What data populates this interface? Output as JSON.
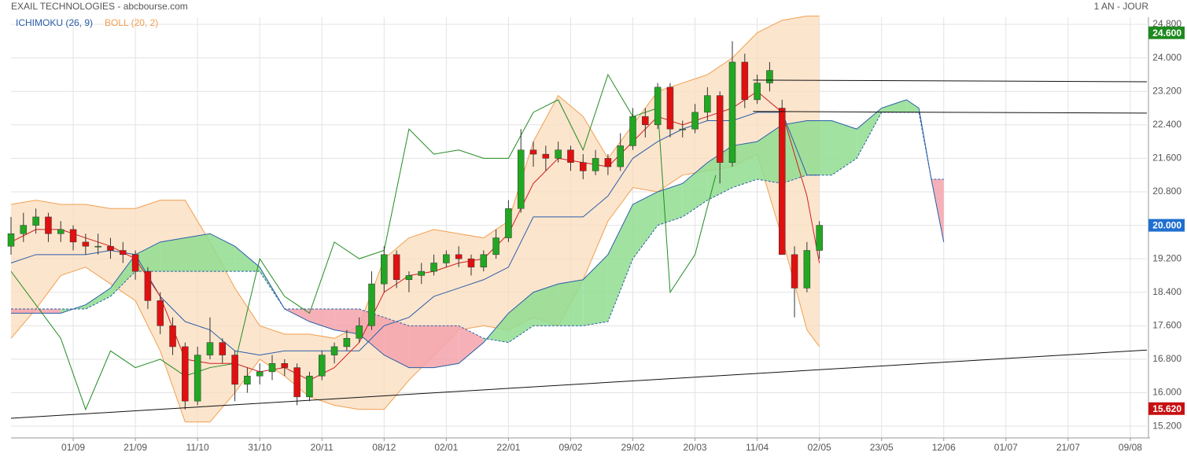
{
  "chart_data": {
    "type": "candlestick",
    "title": "EXAIL TECHNOLOGIES - abcbourse.com",
    "subtitle": "1 AN - JOUR",
    "grid": true,
    "xlim": [
      0,
      274
    ],
    "ylim": [
      14.92,
      24.97
    ],
    "xticks": [
      {
        "value": 15,
        "label": "01/09"
      },
      {
        "value": 30,
        "label": "21/09"
      },
      {
        "value": 45,
        "label": "11/10"
      },
      {
        "value": 60,
        "label": "31/10"
      },
      {
        "value": 75,
        "label": "20/11"
      },
      {
        "value": 90,
        "label": "08/12"
      },
      {
        "value": 105,
        "label": "02/01"
      },
      {
        "value": 120,
        "label": "22/01"
      },
      {
        "value": 135,
        "label": "09/02"
      },
      {
        "value": 150,
        "label": "29/02"
      },
      {
        "value": 165,
        "label": "20/03"
      },
      {
        "value": 180,
        "label": "11/04"
      },
      {
        "value": 195,
        "label": "02/05"
      },
      {
        "value": 210,
        "label": "23/05"
      },
      {
        "value": 225,
        "label": "12/06"
      },
      {
        "value": 240,
        "label": "01/07"
      },
      {
        "value": 255,
        "label": "21/07"
      },
      {
        "value": 270,
        "label": "09/08"
      }
    ],
    "yticks": [
      {
        "value": 15.2,
        "label": "15.200"
      },
      {
        "value": 16,
        "label": "16.000"
      },
      {
        "value": 16.8,
        "label": "16.800"
      },
      {
        "value": 17.6,
        "label": "17.600"
      },
      {
        "value": 18.4,
        "label": "18.400"
      },
      {
        "value": 19.2,
        "label": "19.200"
      },
      {
        "value": 20,
        "label": "20.000"
      },
      {
        "value": 20.8,
        "label": "20.800"
      },
      {
        "value": 21.6,
        "label": "21.600"
      },
      {
        "value": 22.4,
        "label": "22.400"
      },
      {
        "value": 23.2,
        "label": "23.200"
      },
      {
        "value": 24,
        "label": "24.000"
      },
      {
        "value": 24.8,
        "label": "24.800"
      }
    ],
    "up_color": "#22a722",
    "down_color": "#e01010",
    "x": [
      0,
      3,
      6,
      9,
      12,
      15,
      18,
      21,
      24,
      27,
      30,
      33,
      36,
      39,
      42,
      45,
      48,
      51,
      54,
      57,
      60,
      63,
      66,
      69,
      72,
      75,
      78,
      81,
      84,
      87,
      90,
      93,
      96,
      99,
      102,
      105,
      108,
      111,
      114,
      117,
      120,
      123,
      126,
      129,
      132,
      135,
      138,
      141,
      144,
      147,
      150,
      153,
      156,
      159,
      162,
      165,
      168,
      171,
      174,
      177,
      180,
      183,
      186,
      189,
      192,
      195
    ],
    "open": [
      19.5,
      19.8,
      20.0,
      20.2,
      19.8,
      19.9,
      19.6,
      19.5,
      19.5,
      19.4,
      19.3,
      18.9,
      18.2,
      17.6,
      17.1,
      15.8,
      16.9,
      17.2,
      16.9,
      16.2,
      16.4,
      16.5,
      16.7,
      16.6,
      15.9,
      16.4,
      16.9,
      17.1,
      17.3,
      17.6,
      18.6,
      19.3,
      18.7,
      18.8,
      18.9,
      19.1,
      19.3,
      19.2,
      19.0,
      19.3,
      19.7,
      20.4,
      21.8,
      21.7,
      21.6,
      21.8,
      21.5,
      21.3,
      21.6,
      21.4,
      21.9,
      22.6,
      22.4,
      23.3,
      22.3,
      22.3,
      22.7,
      23.1,
      21.5,
      23.9,
      23.0,
      23.4,
      22.8,
      19.3,
      18.5,
      19.4
    ],
    "high": [
      20.2,
      20.3,
      20.4,
      20.3,
      20.1,
      20.0,
      19.8,
      19.8,
      19.7,
      19.6,
      19.4,
      19.0,
      18.4,
      17.8,
      17.2,
      17.1,
      17.8,
      17.3,
      17.0,
      16.6,
      16.7,
      16.9,
      16.8,
      16.7,
      16.5,
      17.0,
      17.2,
      17.5,
      17.8,
      18.9,
      19.5,
      19.4,
      18.9,
      19.1,
      19.3,
      19.4,
      19.5,
      19.3,
      19.4,
      19.9,
      20.6,
      22.3,
      22.0,
      21.9,
      22.0,
      21.9,
      21.7,
      21.8,
      21.7,
      22.2,
      22.8,
      22.8,
      23.4,
      23.4,
      22.5,
      22.9,
      23.3,
      23.2,
      24.4,
      24.1,
      23.6,
      23.9,
      23.0,
      19.5,
      19.6,
      20.1
    ],
    "low": [
      19.3,
      19.6,
      19.8,
      19.6,
      19.6,
      19.4,
      19.3,
      19.3,
      19.2,
      19.1,
      18.7,
      18.0,
      17.4,
      16.9,
      15.6,
      15.7,
      16.8,
      16.7,
      15.8,
      16.0,
      16.2,
      16.3,
      16.4,
      15.7,
      15.8,
      16.3,
      16.7,
      17.0,
      17.2,
      17.5,
      18.4,
      18.5,
      18.4,
      18.6,
      18.8,
      19.0,
      19.0,
      18.8,
      18.9,
      19.2,
      19.6,
      20.3,
      21.4,
      21.3,
      21.5,
      21.3,
      21.1,
      21.2,
      21.2,
      21.3,
      21.8,
      22.1,
      22.3,
      22.1,
      22.1,
      22.2,
      22.5,
      21.0,
      21.4,
      22.8,
      22.9,
      23.2,
      19.3,
      17.8,
      18.4,
      19.2
    ],
    "close": [
      19.8,
      20.0,
      20.2,
      19.8,
      19.9,
      19.6,
      19.5,
      19.5,
      19.4,
      19.3,
      18.9,
      18.2,
      17.6,
      17.1,
      15.8,
      16.9,
      17.2,
      16.9,
      16.2,
      16.4,
      16.5,
      16.7,
      16.6,
      15.9,
      16.4,
      16.9,
      17.1,
      17.3,
      17.6,
      18.6,
      19.3,
      18.7,
      18.8,
      18.9,
      19.1,
      19.3,
      19.2,
      19.0,
      19.3,
      19.7,
      20.4,
      21.8,
      21.7,
      21.6,
      21.8,
      21.5,
      21.3,
      21.6,
      21.4,
      21.9,
      22.6,
      22.4,
      23.3,
      22.3,
      22.3,
      22.7,
      23.1,
      21.5,
      23.9,
      23.0,
      23.4,
      23.7,
      19.3,
      18.5,
      19.4,
      20.0
    ],
    "bollinger": {
      "label": "BOLL (20, 2)",
      "color": "#f0a050",
      "fill": "#fbdcbc",
      "x": [
        0,
        6,
        12,
        18,
        24,
        30,
        36,
        42,
        48,
        54,
        60,
        66,
        72,
        78,
        84,
        90,
        96,
        102,
        108,
        114,
        120,
        126,
        132,
        138,
        144,
        150,
        156,
        162,
        168,
        174,
        180,
        186,
        192,
        195
      ],
      "upper": [
        20.5,
        20.6,
        20.5,
        20.5,
        20.4,
        20.4,
        20.6,
        20.6,
        19.6,
        18.5,
        17.6,
        17.4,
        17.4,
        17.3,
        17.6,
        19.2,
        19.7,
        19.9,
        19.8,
        19.7,
        20.1,
        22.0,
        23.1,
        22.6,
        21.6,
        22.4,
        23.2,
        23.4,
        23.6,
        24.0,
        24.6,
        24.9,
        25.0,
        25.0
      ],
      "lower": [
        17.3,
        18.0,
        18.8,
        19.0,
        18.6,
        18.2,
        17.0,
        15.3,
        15.3,
        16.0,
        16.8,
        16.4,
        15.9,
        15.7,
        15.6,
        15.6,
        16.3,
        16.9,
        17.5,
        17.6,
        17.5,
        17.8,
        17.6,
        18.7,
        20.1,
        20.9,
        20.8,
        21.2,
        21.3,
        21.4,
        21.7,
        19.7,
        17.5,
        17.1
      ]
    },
    "ichimoku": {
      "label": "ICHIMOKU (26, 9)",
      "color": "#2a5ea8",
      "tenkan_color": "#d02020",
      "kijun_color": "#2a5ea8",
      "chikou_color": "#228b22",
      "bull_fill": "#90dd90",
      "bear_fill": "#f5a3ab",
      "x": [
        0,
        6,
        12,
        18,
        24,
        30,
        36,
        42,
        48,
        54,
        60,
        66,
        72,
        78,
        84,
        90,
        96,
        102,
        108,
        114,
        120,
        126,
        132,
        138,
        144,
        150,
        156,
        162,
        168,
        174,
        180,
        186,
        192,
        195
      ],
      "tenkan": [
        19.6,
        19.9,
        19.9,
        19.7,
        19.5,
        19.2,
        18.3,
        16.8,
        16.7,
        16.7,
        16.5,
        16.6,
        16.3,
        16.6,
        17.2,
        18.4,
        18.8,
        18.9,
        19.1,
        19.2,
        19.8,
        21.0,
        21.6,
        21.5,
        21.4,
        22.0,
        22.6,
        22.4,
        22.6,
        22.8,
        23.2,
        22.7,
        20.7,
        19.1
      ],
      "kijun": [
        19.1,
        19.3,
        19.3,
        19.3,
        19.4,
        19.3,
        18.3,
        17.7,
        17.5,
        17.0,
        16.9,
        17.0,
        17.0,
        17.0,
        17.0,
        17.6,
        17.8,
        18.3,
        18.5,
        18.7,
        19.0,
        20.2,
        20.2,
        20.2,
        20.7,
        21.6,
        22.0,
        22.3,
        22.5,
        22.5,
        22.7,
        22.7,
        21.2,
        21.2
      ],
      "chikou_x": [
        0,
        6,
        12,
        18,
        24,
        30,
        36,
        42,
        48,
        54,
        60,
        66,
        72,
        78,
        84,
        90,
        96,
        102,
        108,
        114,
        120,
        126,
        132,
        138,
        144,
        150,
        156,
        159,
        165,
        170
      ],
      "chikou": [
        18.9,
        18.1,
        17.3,
        15.6,
        17.0,
        16.6,
        16.8,
        16.4,
        16.6,
        16.7,
        19.2,
        18.3,
        17.9,
        19.6,
        19.2,
        19.4,
        22.3,
        21.7,
        21.8,
        21.6,
        21.6,
        22.7,
        23.0,
        21.8,
        23.6,
        22.6,
        22.8,
        18.4,
        19.3,
        21.2
      ],
      "cloud_x": [
        0,
        6,
        12,
        18,
        24,
        30,
        36,
        42,
        48,
        54,
        60,
        66,
        72,
        78,
        84,
        90,
        96,
        102,
        108,
        114,
        120,
        126,
        132,
        138,
        144,
        150,
        156,
        162,
        168,
        174,
        180,
        186,
        192,
        198,
        204,
        210,
        216,
        219,
        222,
        225
      ],
      "span_a": [
        17.9,
        17.9,
        17.9,
        18.1,
        18.5,
        19.3,
        19.6,
        19.7,
        19.8,
        19.5,
        19.0,
        18.0,
        17.7,
        17.5,
        17.4,
        16.9,
        16.6,
        16.6,
        16.7,
        17.2,
        17.9,
        18.4,
        18.6,
        18.7,
        19.3,
        20.5,
        20.8,
        21.0,
        21.5,
        21.9,
        22.0,
        22.4,
        22.5,
        22.5,
        22.3,
        22.8,
        23.0,
        22.8,
        21.1,
        19.6
      ],
      "span_b": [
        18.0,
        18.0,
        18.0,
        18.0,
        18.3,
        18.9,
        18.9,
        18.9,
        18.9,
        18.9,
        18.9,
        18.0,
        18.0,
        18.0,
        18.0,
        17.8,
        17.6,
        17.6,
        17.6,
        17.3,
        17.2,
        17.6,
        17.6,
        17.6,
        17.7,
        19.2,
        20.0,
        20.2,
        20.6,
        20.9,
        21.1,
        21.0,
        21.2,
        21.2,
        21.6,
        22.7,
        22.7,
        22.7,
        21.1,
        21.1
      ]
    },
    "trendlines": [
      {
        "x": [
          0,
          274
        ],
        "y": [
          15.39,
          17.02
        ]
      },
      {
        "x": [
          179,
          274
        ],
        "y": [
          23.47,
          23.43
        ]
      },
      {
        "x": [
          179,
          274
        ],
        "y": [
          22.72,
          22.68
        ]
      }
    ],
    "price_labels": [
      {
        "value": 24.6,
        "label": "24.600",
        "color": "#1e8a1e"
      },
      {
        "value": 20.0,
        "label": "20.000",
        "color": "#1f6fd0"
      },
      {
        "value": 15.62,
        "label": "15.620",
        "color": "#c81010"
      }
    ]
  }
}
